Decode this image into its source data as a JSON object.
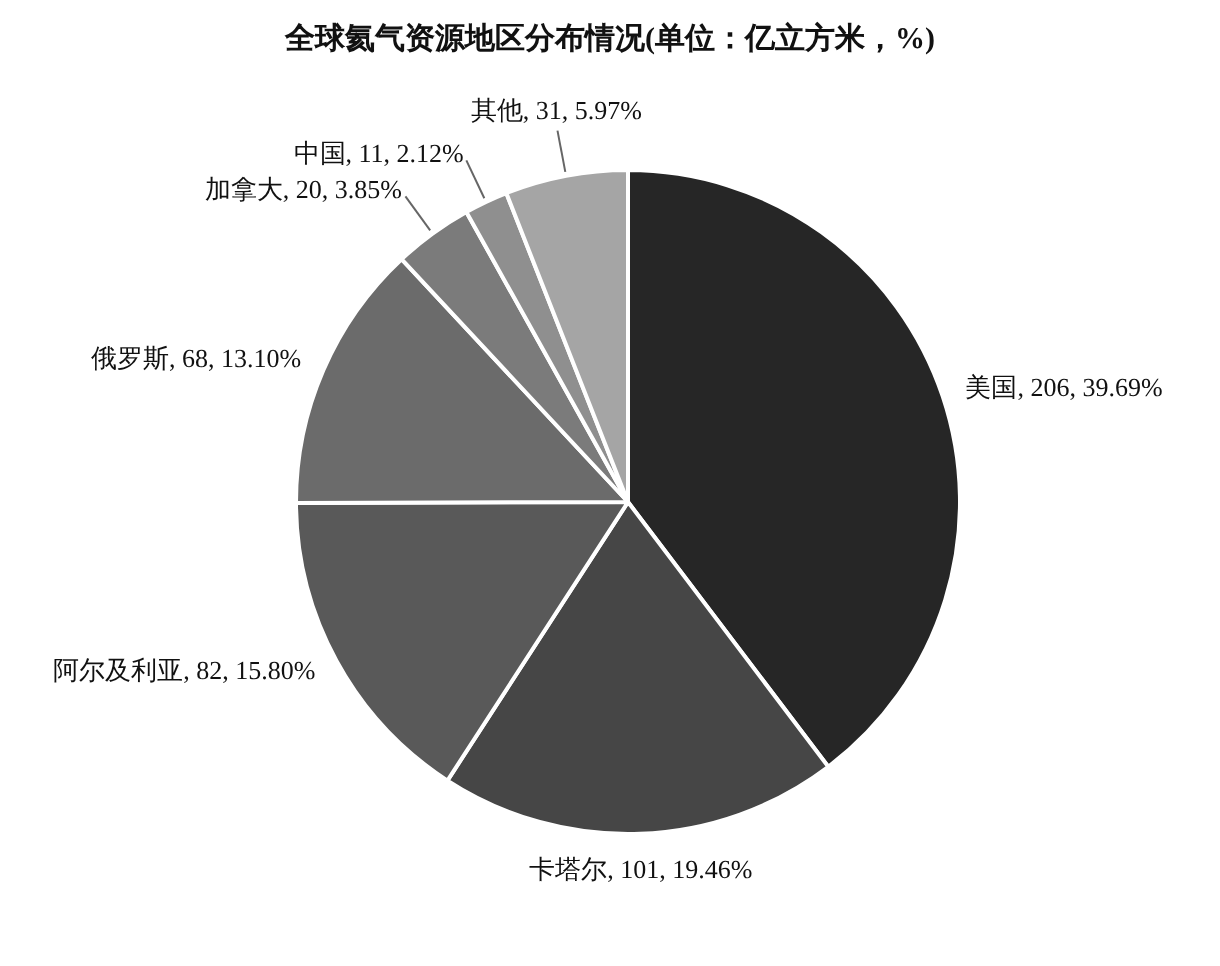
{
  "chart_data": {
    "type": "pie",
    "title": "全球氦气资源地区分布情况(单位：亿立方米，%)",
    "categories": [
      "美国",
      "卡塔尔",
      "阿尔及利亚",
      "俄罗斯",
      "加拿大",
      "中国",
      "其他"
    ],
    "values": [
      206,
      101,
      82,
      68,
      20,
      11,
      31
    ],
    "value_labels": [
      "206, 39.69%",
      "101, 19.46%",
      "82, 15.80%",
      "68, 13.10%",
      "20, 3.85%",
      "11, 2.12%",
      "31, 5.97%"
    ],
    "colors": [
      "#262626",
      "#464646",
      "#595959",
      "#6b6b6b",
      "#7b7b7b",
      "#8f8f8f",
      "#a5a5a5"
    ]
  }
}
